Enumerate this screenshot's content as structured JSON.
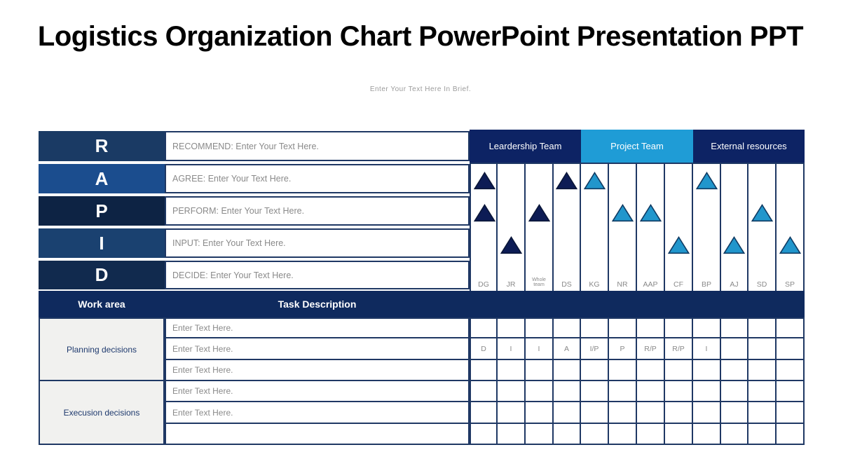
{
  "title": "Logistics Organization Chart PowerPoint Presentation PPT",
  "subtitle": "Enter Your Text Here In Brief.",
  "rapid_rows": [
    {
      "letter": "R",
      "description": "RECOMMEND: Enter Your Text Here.",
      "bg": "#1a3a64"
    },
    {
      "letter": "A",
      "description": "AGREE: Enter Your Text Here.",
      "bg": "#1b4d8e"
    },
    {
      "letter": "P",
      "description": "PERFORM: Enter Your Text Here.",
      "bg": "#0d2344"
    },
    {
      "letter": "I",
      "description": "INPUT: Enter Your Text Here.",
      "bg": "#1a4170"
    },
    {
      "letter": "D",
      "description": "DECIDE: Enter Your Text Here.",
      "bg": "#112a4e"
    }
  ],
  "team_headers": [
    {
      "label": "Leardership Team",
      "bg": "#0d2364",
      "span": 4
    },
    {
      "label": "Project Team",
      "bg": "#1f9cd6",
      "span": 4
    },
    {
      "label": "External resources",
      "bg": "#0d2364",
      "span": 4
    }
  ],
  "people": [
    "DG",
    "JR",
    "Whole team",
    "DS",
    "KG",
    "NR",
    "AAP",
    "CF",
    "BP",
    "AJ",
    "SD",
    "SP"
  ],
  "triangle_rows": [
    {
      "rapid_letter": "A",
      "marks": [
        "dark",
        "",
        "",
        "dark",
        "light",
        "",
        "",
        "",
        "light",
        "",
        "",
        ""
      ]
    },
    {
      "rapid_letter": "P",
      "marks": [
        "dark",
        "",
        "dark",
        "",
        "",
        "light",
        "light",
        "",
        "",
        "",
        "light",
        ""
      ]
    },
    {
      "rapid_letter": "I",
      "marks": [
        "",
        "dark",
        "",
        "",
        "",
        "",
        "",
        "light",
        "",
        "light",
        "",
        "light"
      ]
    }
  ],
  "work_header": {
    "work_area": "Work area",
    "task_description": "Task Description"
  },
  "work_areas": [
    {
      "label": "Planning  decisions",
      "rows": 3
    },
    {
      "label": "Execusion decisions",
      "rows": 3
    }
  ],
  "task_rows": [
    {
      "description": "Enter Text Here.",
      "codes": []
    },
    {
      "description": "Enter Text Here.",
      "codes": [
        "D",
        "I",
        "I",
        "A",
        "I/P",
        "P",
        "R/P",
        "R/P",
        "I",
        "",
        "",
        ""
      ]
    },
    {
      "description": "Enter Text Here.",
      "codes": []
    },
    {
      "description": "Enter Text Here.",
      "codes": []
    },
    {
      "description": "Enter Text Here.",
      "codes": []
    },
    {
      "description": "",
      "codes": []
    }
  ],
  "colors": {
    "border": "#1f3864",
    "work_header_bg": "#0f2a5e",
    "dark_triangle_fill": "#0d1c55",
    "dark_triangle_stroke": "#0a1638",
    "light_triangle_fill": "#2196cc",
    "light_triangle_stroke": "#0f3a62",
    "gray_text": "#8a8a8a",
    "work_area_bg": "#f1f1ef",
    "work_area_text": "#1f3a6e",
    "title_color": "#000000",
    "subtitle_color": "#9b9b9b"
  }
}
